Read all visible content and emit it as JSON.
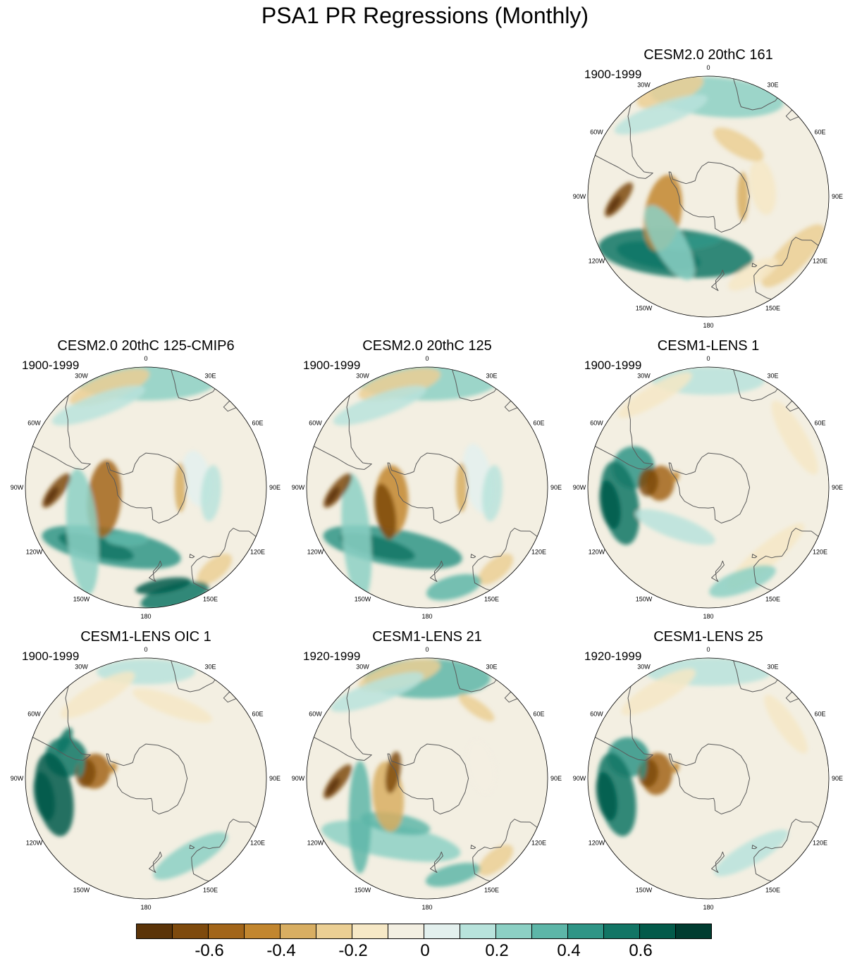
{
  "title": "PSA1 PR Regressions (Monthly)",
  "lon_labels": [
    "0",
    "30E",
    "60E",
    "90E",
    "120E",
    "150E",
    "180",
    "150W",
    "120W",
    "90W",
    "60W",
    "30W"
  ],
  "colors": {
    "ocean": "#f3efe2",
    "coast": "#5a5a5a",
    "scale": [
      "#5b3408",
      "#7e4a0d",
      "#a26519",
      "#c2862f",
      "#d8ae62",
      "#ebcf94",
      "#f6e8c6",
      "#f3efe2",
      "#e3f0ee",
      "#b8e3dc",
      "#8cd0c4",
      "#5db6a8",
      "#2f9586",
      "#127565",
      "#035a4a",
      "#003c30"
    ]
  },
  "colorbar": {
    "labels": [
      "-0.6",
      "-0.4",
      "-0.2",
      "0",
      "0.2",
      "0.4",
      "0.6"
    ]
  },
  "panels": [
    {
      "title": "CESM2.0 20thC 161",
      "period": "1900-1999",
      "blobs": [
        [
          -52,
          -150,
          110,
          34,
          -25,
          13
        ],
        [
          -45,
          -140,
          60,
          18,
          -30,
          13
        ],
        [
          -62,
          -162,
          40,
          10,
          -25,
          12
        ],
        [
          -32,
          5,
          95,
          28,
          0,
          10
        ],
        [
          -62,
          -110,
          55,
          26,
          30,
          3
        ],
        [
          -55,
          -140,
          60,
          22,
          20,
          10
        ],
        [
          -25,
          -20,
          50,
          18,
          0,
          5
        ],
        [
          -35,
          -30,
          70,
          16,
          10,
          9
        ],
        [
          -30,
          125,
          60,
          20,
          10,
          5
        ],
        [
          -38,
          150,
          40,
          14,
          0,
          6
        ],
        [
          -58,
          80,
          40,
          18,
          0,
          6
        ],
        [
          -38,
          -92,
          30,
          10,
          40,
          1
        ],
        [
          -35,
          -95,
          15,
          5,
          40,
          0
        ],
        [
          -70,
          90,
          35,
          8,
          0,
          4
        ],
        [
          -55,
          30,
          40,
          15,
          0,
          5
        ]
      ]
    },
    {
      "title": "CESM2.0 20thC 125-CMIP6",
      "period": "1900-1999",
      "blobs": [
        [
          -50,
          -150,
          100,
          26,
          -20,
          12
        ],
        [
          -45,
          -140,
          55,
          14,
          -25,
          13
        ],
        [
          -58,
          -160,
          30,
          10,
          -20,
          11
        ],
        [
          -28,
          0,
          100,
          28,
          0,
          10
        ],
        [
          -65,
          -105,
          55,
          24,
          20,
          2
        ],
        [
          -45,
          -125,
          90,
          22,
          30,
          10
        ],
        [
          -28,
          -20,
          60,
          18,
          0,
          5
        ],
        [
          -35,
          -30,
          70,
          16,
          10,
          9
        ],
        [
          -28,
          140,
          30,
          14,
          0,
          5
        ],
        [
          -25,
          165,
          50,
          16,
          0,
          13
        ],
        [
          -32,
          170,
          40,
          10,
          0,
          14
        ],
        [
          -38,
          -92,
          30,
          10,
          40,
          1
        ],
        [
          -35,
          -95,
          15,
          5,
          40,
          0
        ],
        [
          -60,
          80,
          40,
          20,
          0,
          8
        ],
        [
          -70,
          90,
          35,
          8,
          0,
          4
        ],
        [
          -52,
          95,
          40,
          14,
          0,
          9
        ]
      ]
    },
    {
      "title": "CESM2.0 20thC 125",
      "period": "1900-1999",
      "blobs": [
        [
          -50,
          -150,
          100,
          26,
          -20,
          12
        ],
        [
          -45,
          -140,
          55,
          14,
          -25,
          13
        ],
        [
          -28,
          0,
          100,
          28,
          0,
          10
        ],
        [
          -68,
          -110,
          50,
          24,
          20,
          3
        ],
        [
          -62,
          -120,
          40,
          14,
          20,
          1
        ],
        [
          -40,
          -125,
          90,
          20,
          30,
          10
        ],
        [
          -28,
          -15,
          60,
          18,
          0,
          5
        ],
        [
          -35,
          -30,
          70,
          16,
          10,
          9
        ],
        [
          -28,
          140,
          30,
          14,
          0,
          5
        ],
        [
          -30,
          165,
          40,
          16,
          0,
          11
        ],
        [
          -38,
          -92,
          30,
          10,
          40,
          1
        ],
        [
          -35,
          -95,
          15,
          5,
          40,
          0
        ],
        [
          -60,
          80,
          50,
          20,
          0,
          8
        ],
        [
          -70,
          90,
          35,
          8,
          0,
          4
        ],
        [
          -52,
          95,
          40,
          14,
          0,
          9
        ]
      ]
    },
    {
      "title": "CESM1-LENS 1",
      "period": "1900-1999",
      "blobs": [
        [
          -45,
          -75,
          30,
          30,
          0,
          12
        ],
        [
          -38,
          -100,
          60,
          26,
          0,
          13
        ],
        [
          -32,
          -100,
          35,
          14,
          0,
          14
        ],
        [
          -62,
          -85,
          25,
          20,
          0,
          2
        ],
        [
          -55,
          -85,
          20,
          14,
          0,
          1
        ],
        [
          -70,
          -72,
          8,
          5,
          0,
          3
        ],
        [
          -60,
          -140,
          60,
          16,
          -20,
          9
        ],
        [
          -28,
          0,
          80,
          20,
          0,
          9
        ],
        [
          -32,
          60,
          60,
          16,
          0,
          6
        ],
        [
          -28,
          -30,
          60,
          14,
          0,
          6
        ],
        [
          -38,
          140,
          70,
          16,
          0,
          6
        ],
        [
          -32,
          160,
          50,
          16,
          0,
          10
        ]
      ]
    },
    {
      "title": "CESM1-LENS OIC 1",
      "period": "1900-1999",
      "blobs": [
        [
          -42,
          -75,
          28,
          30,
          0,
          13
        ],
        [
          -36,
          -100,
          60,
          26,
          0,
          14
        ],
        [
          -30,
          -100,
          35,
          14,
          0,
          14
        ],
        [
          -60,
          -82,
          25,
          22,
          0,
          2
        ],
        [
          -55,
          -85,
          20,
          14,
          0,
          1
        ],
        [
          -70,
          -72,
          8,
          5,
          0,
          3
        ],
        [
          -52,
          -80,
          15,
          4,
          0,
          12
        ],
        [
          -38,
          -65,
          20,
          8,
          0,
          13
        ],
        [
          -28,
          0,
          70,
          18,
          0,
          9
        ],
        [
          -34,
          -30,
          60,
          16,
          0,
          6
        ],
        [
          -45,
          20,
          60,
          14,
          0,
          6
        ],
        [
          -38,
          150,
          60,
          18,
          0,
          10
        ]
      ]
    },
    {
      "title": "CESM1-LENS 21",
      "period": "1920-1999",
      "blobs": [
        [
          -48,
          -150,
          100,
          24,
          -20,
          10
        ],
        [
          -58,
          -145,
          50,
          14,
          -25,
          11
        ],
        [
          -32,
          0,
          90,
          28,
          0,
          11
        ],
        [
          -65,
          -115,
          50,
          22,
          20,
          4
        ],
        [
          -45,
          -120,
          80,
          16,
          30,
          11
        ],
        [
          -70,
          -80,
          30,
          10,
          0,
          1
        ],
        [
          -28,
          -15,
          60,
          18,
          0,
          5
        ],
        [
          -32,
          -30,
          70,
          16,
          10,
          9
        ],
        [
          -28,
          140,
          30,
          14,
          0,
          5
        ],
        [
          -32,
          165,
          40,
          14,
          0,
          11
        ],
        [
          -38,
          -92,
          30,
          10,
          40,
          1
        ],
        [
          -35,
          -95,
          15,
          5,
          40,
          0
        ],
        [
          -58,
          78,
          40,
          20,
          0,
          7
        ],
        [
          -40,
          35,
          30,
          10,
          0,
          5
        ]
      ]
    },
    {
      "title": "CESM1-LENS 25",
      "period": "1920-1999",
      "blobs": [
        [
          -42,
          -75,
          28,
          30,
          0,
          12
        ],
        [
          -36,
          -100,
          60,
          26,
          0,
          13
        ],
        [
          -30,
          -100,
          35,
          14,
          0,
          14
        ],
        [
          -60,
          -85,
          30,
          22,
          0,
          2
        ],
        [
          -55,
          -85,
          20,
          14,
          0,
          1
        ],
        [
          -70,
          -72,
          8,
          5,
          0,
          3
        ],
        [
          -52,
          -82,
          15,
          4,
          0,
          12
        ],
        [
          -28,
          0,
          90,
          20,
          0,
          9
        ],
        [
          -32,
          -30,
          60,
          16,
          0,
          6
        ],
        [
          -40,
          150,
          60,
          16,
          0,
          9
        ],
        [
          -35,
          55,
          50,
          14,
          0,
          6
        ]
      ]
    }
  ]
}
